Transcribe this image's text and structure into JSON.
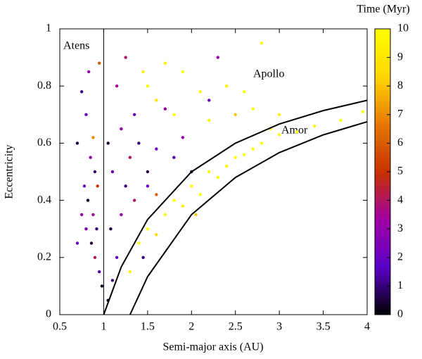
{
  "chart_data": {
    "type": "scatter",
    "xlabel": "Semi-major axis (AU)",
    "ylabel": "Eccentricity",
    "xlim": [
      0.5,
      4
    ],
    "ylim": [
      0,
      1
    ],
    "xticks": [
      0.5,
      1,
      1.5,
      2,
      2.5,
      3,
      3.5,
      4
    ],
    "yticks": [
      0,
      0.2,
      0.4,
      0.6,
      0.8,
      1
    ],
    "colorbar": {
      "title": "Time (Myr)",
      "clim": [
        0,
        10
      ],
      "ticks": [
        0,
        1,
        2,
        3,
        4,
        5,
        6,
        7,
        8,
        9,
        10
      ],
      "colormap": [
        "#000000",
        "#5a00c8",
        "#a000a0",
        "#c83200",
        "#e67800",
        "#ffd700",
        "#ffff00"
      ]
    },
    "annotations": [
      "Atens",
      "Apollo",
      "Amor"
    ],
    "points": {
      "x": [
        0.75,
        0.8,
        0.7,
        0.85,
        0.9,
        0.78,
        0.82,
        0.88,
        0.92,
        0.8,
        0.86,
        0.9,
        0.95,
        0.98,
        0.75,
        0.7,
        0.93,
        0.88,
        0.83,
        0.95,
        1.05,
        1.1,
        1.15,
        1.08,
        1.2,
        1.25,
        1.1,
        1.3,
        1.05,
        1.2,
        1.35,
        1.15,
        1.4,
        1.5,
        1.6,
        1.8,
        1.9,
        2.0,
        1.7,
        2.2,
        2.3,
        1.25,
        1.45,
        1.5,
        1.7,
        1.9,
        2.1,
        2.4,
        2.6,
        2.8,
        2.5,
        2.2,
        2.7,
        1.6,
        1.8,
        3.0,
        2.9,
        1.3,
        1.4,
        1.5,
        1.6,
        1.7,
        1.8,
        1.9,
        2.0,
        2.1,
        2.2,
        2.3,
        2.4,
        2.5,
        2.6,
        2.7,
        2.8,
        3.0,
        3.2,
        3.4,
        3.7,
        3.95,
        1.35,
        1.5,
        1.45,
        1.6,
        2.05
      ],
      "y": [
        0.78,
        0.7,
        0.6,
        0.55,
        0.5,
        0.45,
        0.4,
        0.35,
        0.3,
        0.3,
        0.25,
        0.2,
        0.15,
        0.1,
        0.35,
        0.25,
        0.45,
        0.62,
        0.85,
        0.88,
        0.05,
        0.12,
        0.2,
        0.3,
        0.35,
        0.45,
        0.5,
        0.55,
        0.6,
        0.65,
        0.7,
        0.8,
        0.6,
        0.5,
        0.58,
        0.55,
        0.62,
        0.5,
        0.72,
        0.75,
        0.9,
        0.9,
        0.85,
        0.8,
        0.88,
        0.85,
        0.78,
        0.8,
        0.78,
        0.95,
        0.7,
        0.68,
        0.72,
        0.75,
        0.7,
        0.7,
        0.65,
        0.15,
        0.25,
        0.3,
        0.28,
        0.35,
        0.4,
        0.38,
        0.45,
        0.42,
        0.5,
        0.48,
        0.52,
        0.55,
        0.56,
        0.58,
        0.6,
        0.63,
        0.64,
        0.66,
        0.68,
        0.71,
        0.4,
        0.45,
        0.2,
        0.42,
        0.35
      ],
      "t": [
        1,
        2,
        0.5,
        3,
        1,
        2,
        0.3,
        3.5,
        1,
        2.5,
        0.5,
        4,
        1.5,
        0.2,
        3,
        2,
        5,
        7,
        3,
        6,
        0.3,
        1,
        2,
        0.5,
        3,
        1,
        2,
        4,
        0.5,
        3,
        2,
        3.5,
        1,
        0.5,
        2,
        1.5,
        3,
        0.5,
        3,
        2,
        3,
        4,
        9.5,
        9.8,
        9.5,
        9.9,
        9.7,
        9.6,
        9.9,
        9.8,
        8,
        9.5,
        9.9,
        9,
        9.8,
        9.5,
        9.9,
        9.5,
        9.8,
        9.9,
        8.5,
        9.7,
        9.9,
        9.5,
        9.8,
        9.9,
        9.6,
        9.9,
        9.5,
        9.8,
        9.9,
        9.7,
        9.9,
        9.8,
        9.9,
        9.6,
        9.9,
        9.8,
        4,
        2,
        1,
        6,
        8
      ]
    },
    "lines": [
      {
        "x": [
          1,
          1
        ],
        "y": [
          0,
          1
        ]
      },
      {
        "x": [
          1,
          1.2,
          1.5,
          2,
          2.5,
          3,
          3.5,
          4
        ],
        "y": [
          0,
          0.167,
          0.333,
          0.5,
          0.6,
          0.667,
          0.714,
          0.75
        ]
      },
      {
        "x": [
          1.3,
          1.5,
          2,
          2.5,
          3,
          3.5,
          4
        ],
        "y": [
          0,
          0.133,
          0.35,
          0.48,
          0.567,
          0.629,
          0.675
        ]
      }
    ]
  }
}
